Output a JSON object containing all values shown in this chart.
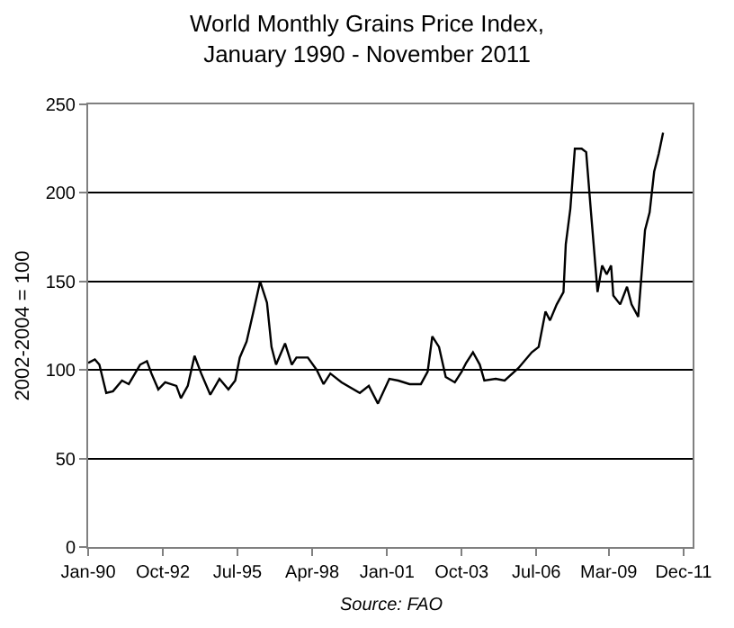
{
  "chart_data": {
    "type": "line",
    "title": "World Monthly Grains Price Index,\nJanuary 1990 - November 2011",
    "ylabel": "2002-2004 = 100",
    "annotations": [
      "Source: FAO"
    ],
    "x": [
      "1990-01",
      "1990-04",
      "1990-06",
      "1990-09",
      "1990-12",
      "1991-04",
      "1991-07",
      "1991-12",
      "1992-03",
      "1992-05",
      "1992-08",
      "1992-11",
      "1993-04",
      "1993-06",
      "1993-09",
      "1993-12",
      "1994-03",
      "1994-07",
      "1994-11",
      "1995-03",
      "1995-06",
      "1995-08",
      "1995-11",
      "1996-02",
      "1996-05",
      "1996-08",
      "1996-10",
      "1996-12",
      "1997-04",
      "1997-07",
      "1997-09",
      "1998-02",
      "1998-06",
      "1998-09",
      "1998-12",
      "1999-05",
      "2000-01",
      "2000-05",
      "2000-09",
      "2001-02",
      "2001-06",
      "2001-11",
      "2002-04",
      "2002-07",
      "2002-09",
      "2002-12",
      "2003-03",
      "2003-07",
      "2003-10",
      "2003-12",
      "2004-03",
      "2004-06",
      "2004-08",
      "2005-01",
      "2005-05",
      "2005-11",
      "2006-05",
      "2006-08",
      "2006-11",
      "2007-01",
      "2007-04",
      "2007-07",
      "2007-08",
      "2007-10",
      "2007-12",
      "2008-03",
      "2008-05",
      "2008-07",
      "2008-10",
      "2008-12",
      "2009-02",
      "2009-04",
      "2009-05",
      "2009-08",
      "2009-11",
      "2010-01",
      "2010-04",
      "2010-07",
      "2010-09",
      "2010-11",
      "2011-01",
      "2011-03"
    ],
    "series": [
      {
        "color": "#000000",
        "values": [
          104,
          106,
          103,
          87,
          88,
          94,
          92,
          103,
          105,
          98,
          89,
          93,
          91,
          84,
          91,
          108,
          98,
          86,
          95,
          89,
          94,
          107,
          116,
          133,
          150,
          138,
          113,
          103,
          115,
          103,
          107,
          107,
          100,
          92,
          98,
          93,
          87,
          91,
          81,
          95,
          94,
          92,
          92,
          99,
          119,
          113,
          96,
          93,
          99,
          104,
          110,
          103,
          94,
          95,
          94,
          101,
          110,
          113,
          133,
          128,
          137,
          144,
          171,
          191,
          225,
          225,
          223,
          191,
          144,
          159,
          154,
          159,
          142,
          137,
          147,
          137,
          130,
          179,
          189,
          212,
          222,
          234
        ]
      }
    ],
    "xlim": [
      "1990-01",
      "2012-04"
    ],
    "xticks": [
      {
        "value": "1990-01",
        "label": "Jan-90"
      },
      {
        "value": "1992-10",
        "label": "Oct-92"
      },
      {
        "value": "1995-07",
        "label": "Jul-95"
      },
      {
        "value": "1998-04",
        "label": "Apr-98"
      },
      {
        "value": "2001-01",
        "label": "Jan-01"
      },
      {
        "value": "2003-10",
        "label": "Oct-03"
      },
      {
        "value": "2006-07",
        "label": "Jul-06"
      },
      {
        "value": "2009-03",
        "label": "Mar-09"
      },
      {
        "value": "2011-12",
        "label": "Dec-11"
      }
    ],
    "ylim": [
      0,
      250
    ],
    "yticks": [
      0,
      50,
      100,
      150,
      200,
      250
    ],
    "grid": "y",
    "marker": "none",
    "line_style": "solid"
  }
}
